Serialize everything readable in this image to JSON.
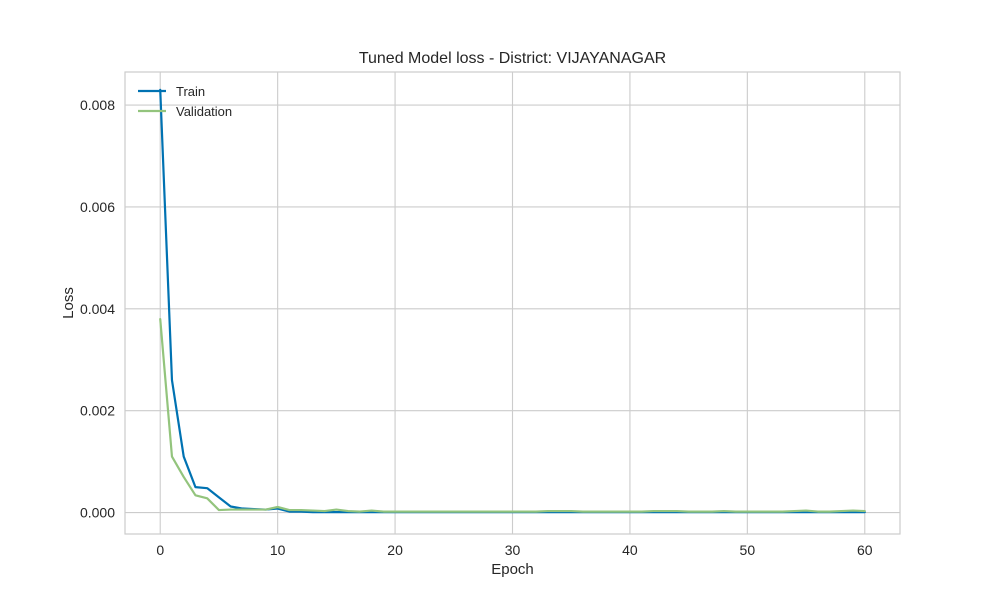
{
  "chart_data": {
    "type": "line",
    "title": "Tuned Model loss - District: VIJAYANAGAR",
    "xlabel": "Epoch",
    "ylabel": "Loss",
    "xlim": [
      -3,
      63
    ],
    "ylim": [
      -0.00042,
      0.00865
    ],
    "x_ticks": [
      0,
      10,
      20,
      30,
      40,
      50,
      60
    ],
    "y_ticks": [
      0,
      0.002,
      0.004,
      0.006,
      0.008
    ],
    "x_tick_labels": [
      "0",
      "10",
      "20",
      "30",
      "40",
      "50",
      "60"
    ],
    "y_tick_labels": [
      "0.000",
      "0.002",
      "0.004",
      "0.006",
      "0.008"
    ],
    "grid": true,
    "legend_position": "top-left",
    "x": [
      0,
      1,
      2,
      3,
      4,
      5,
      6,
      7,
      8,
      9,
      10,
      11,
      12,
      13,
      14,
      15,
      16,
      17,
      18,
      19,
      20,
      21,
      22,
      23,
      24,
      25,
      26,
      27,
      28,
      29,
      30,
      31,
      32,
      33,
      34,
      35,
      36,
      37,
      38,
      39,
      40,
      41,
      42,
      43,
      44,
      45,
      46,
      47,
      48,
      49,
      50,
      51,
      52,
      53,
      54,
      55,
      56,
      57,
      58,
      59,
      60
    ],
    "series": [
      {
        "name": "Train",
        "color": "#0072B2",
        "values": [
          0.0083,
          0.0026,
          0.0011,
          0.0005,
          0.00048,
          0.0003,
          0.00012,
          8e-05,
          7e-05,
          6e-05,
          8e-05,
          2e-05,
          2e-05,
          1e-05,
          1e-05,
          1e-05,
          1e-05,
          1e-05,
          1e-05,
          1e-05,
          1e-05,
          1e-05,
          1e-05,
          1e-05,
          1e-05,
          1e-05,
          1e-05,
          1e-05,
          1e-05,
          1e-05,
          1e-05,
          1e-05,
          1e-05,
          1e-05,
          1e-05,
          1e-05,
          1e-05,
          1e-05,
          1e-05,
          1e-05,
          1e-05,
          1e-05,
          1e-05,
          1e-05,
          1e-05,
          1e-05,
          1e-05,
          1e-05,
          1e-05,
          1e-05,
          1e-05,
          1e-05,
          1e-05,
          1e-05,
          1e-05,
          1e-05,
          1e-05,
          1e-05,
          1e-05,
          1e-05,
          1e-05
        ]
      },
      {
        "name": "Validation",
        "color": "#93C47D",
        "values": [
          0.0038,
          0.0011,
          0.0007,
          0.00034,
          0.00028,
          5e-05,
          6e-05,
          6e-05,
          6e-05,
          6e-05,
          0.00011,
          5e-05,
          5e-05,
          4e-05,
          3e-05,
          6e-05,
          3e-05,
          2e-05,
          4e-05,
          2e-05,
          2e-05,
          2e-05,
          2e-05,
          2e-05,
          2e-05,
          2e-05,
          2e-05,
          2e-05,
          2e-05,
          2e-05,
          2e-05,
          2e-05,
          2e-05,
          3e-05,
          3e-05,
          3e-05,
          2e-05,
          2e-05,
          2e-05,
          2e-05,
          2e-05,
          2e-05,
          3e-05,
          3e-05,
          3e-05,
          2e-05,
          2e-05,
          2e-05,
          3e-05,
          2e-05,
          2e-05,
          2e-05,
          2e-05,
          2e-05,
          3e-05,
          4e-05,
          2e-05,
          2e-05,
          3e-05,
          4e-05,
          3e-05
        ]
      }
    ]
  }
}
